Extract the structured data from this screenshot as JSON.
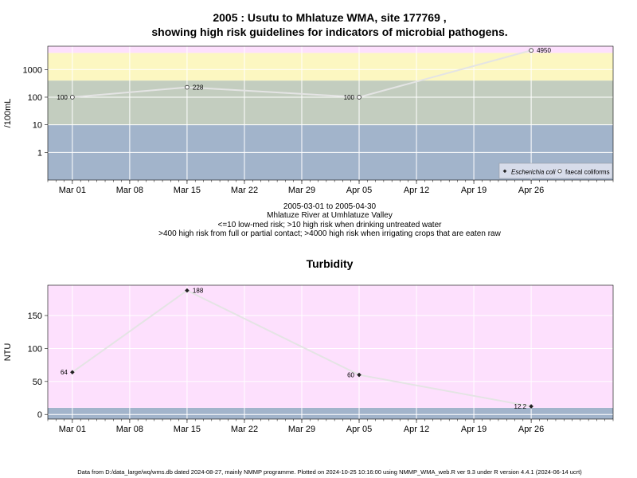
{
  "chart_data": [
    {
      "type": "line",
      "title": "2005 : Usutu to Mhlatuze WMA, site 177769 ,",
      "subtitle": "showing high risk guidelines for indicators of microbial pathogens.",
      "ylabel": "/100mL",
      "yscale": "log",
      "ylim": [
        0.1,
        7000
      ],
      "xlim": [
        "2005-02-26",
        "2005-05-06"
      ],
      "yticks": [
        1,
        10,
        100,
        1000
      ],
      "ytick_labels": [
        "1",
        "10",
        "100",
        "1000"
      ],
      "xticks": [
        "2005-03-01",
        "2005-03-08",
        "2005-03-15",
        "2005-03-22",
        "2005-03-29",
        "2005-04-05",
        "2005-04-12",
        "2005-04-19",
        "2005-04-26"
      ],
      "xtick_labels": [
        "Mar 01",
        "Mar 08",
        "Mar 15",
        "Mar 22",
        "Mar 29",
        "Apr 05",
        "Apr 12",
        "Apr 19",
        "Apr 26"
      ],
      "bands": [
        {
          "from": 0.1,
          "to": 10,
          "color": "#a2b4cb"
        },
        {
          "from": 10,
          "to": 400,
          "color": "#c3cdbf"
        },
        {
          "from": 400,
          "to": 4000,
          "color": "#fcf7c1"
        },
        {
          "from": 4000,
          "to": 7000,
          "color": "#fde0fd"
        }
      ],
      "series": [
        {
          "name": "faecal coliforms",
          "marker": "open-circle",
          "x": [
            "2005-03-01",
            "2005-03-15",
            "2005-04-05",
            "2005-04-26"
          ],
          "y": [
            100,
            228,
            100,
            4950
          ],
          "labels": [
            "100",
            "228",
            "100",
            "4950"
          ]
        }
      ],
      "legend": {
        "position": "bottom-right",
        "entries": [
          {
            "name": "Escherichia coli",
            "marker": "filled-diamond"
          },
          {
            "name": "faecal coliforms",
            "marker": "open-circle"
          }
        ]
      },
      "notes": [
        "2005-03-01 to 2005-04-30",
        "Mhlatuze River at Umhlatuze Valley",
        "<=10 low-med risk; >10 high risk when drinking untreated water",
        ">400 high risk from full or partial contact; >4000 high risk when irrigating crops that are eaten raw"
      ]
    },
    {
      "type": "line",
      "title": "Turbidity",
      "ylabel": "NTU",
      "ylim": [
        -7,
        196
      ],
      "xlim": [
        "2005-02-26",
        "2005-05-06"
      ],
      "yticks": [
        0,
        50,
        100,
        150
      ],
      "ytick_labels": [
        "0",
        "50",
        "100",
        "150"
      ],
      "xticks": [
        "2005-03-01",
        "2005-03-08",
        "2005-03-15",
        "2005-03-22",
        "2005-03-29",
        "2005-04-05",
        "2005-04-12",
        "2005-04-19",
        "2005-04-26"
      ],
      "xtick_labels": [
        "Mar 01",
        "Mar 08",
        "Mar 15",
        "Mar 22",
        "Mar 29",
        "Apr 05",
        "Apr 12",
        "Apr 19",
        "Apr 26"
      ],
      "bands": [
        {
          "from": -7,
          "to": 10,
          "color": "#a2b4cb"
        },
        {
          "from": 10,
          "to": 196,
          "color": "#fde0fd"
        }
      ],
      "series": [
        {
          "marker": "filled-diamond",
          "x": [
            "2005-03-01",
            "2005-03-15",
            "2005-04-05",
            "2005-04-26"
          ],
          "y": [
            64,
            188,
            60,
            12.2
          ],
          "labels": [
            "64",
            "188",
            "60",
            "12.2"
          ]
        }
      ]
    }
  ],
  "footer": "Data from D:/data_large/wq/wms.db dated 2024-08-27, mainly NMMP programme. Plotted on 2024-10-25 10:16:00 using NMMP_WMA_web.R ver 9.3 under R version 4.4.1 (2024-06-14 ucrt)"
}
